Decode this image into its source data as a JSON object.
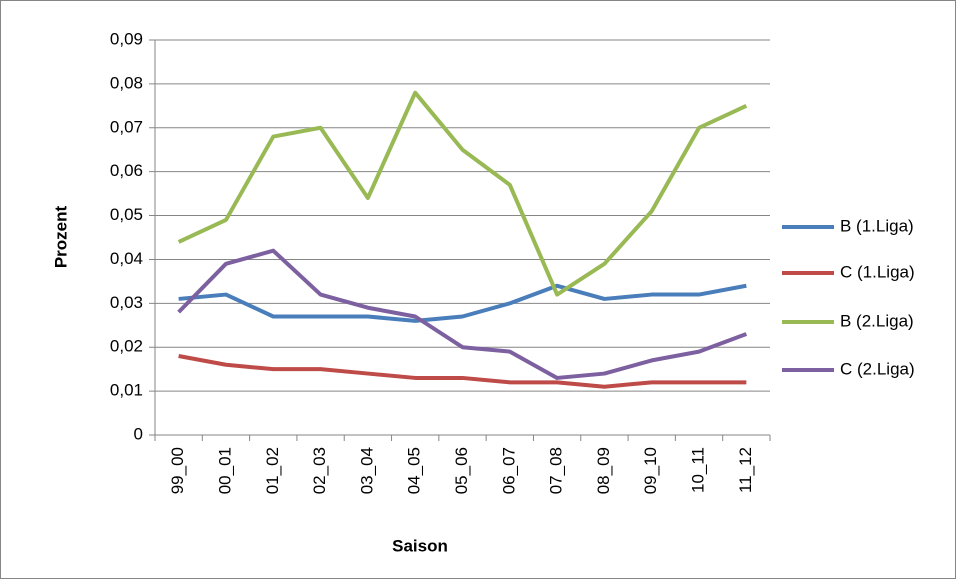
{
  "chart_data": {
    "type": "line",
    "x_label": "Saison",
    "y_label": "Prozent",
    "categories": [
      "99_00",
      "00_01",
      "01_02",
      "02_03",
      "03_04",
      "04_05",
      "05_06",
      "06_07",
      "07_08",
      "08_09",
      "09_10",
      "10_11",
      "11_12"
    ],
    "series": [
      {
        "name": "B (1.Liga)",
        "color": "#4a7ebb",
        "values": [
          0.031,
          0.032,
          0.027,
          0.027,
          0.027,
          0.026,
          0.027,
          0.03,
          0.034,
          0.031,
          0.032,
          0.032,
          0.034
        ]
      },
      {
        "name": "C (1.Liga)",
        "color": "#be4b48",
        "values": [
          0.018,
          0.016,
          0.015,
          0.015,
          0.014,
          0.013,
          0.013,
          0.012,
          0.012,
          0.011,
          0.012,
          0.012,
          0.012
        ]
      },
      {
        "name": "B (2.Liga)",
        "color": "#98b954",
        "values": [
          0.044,
          0.049,
          0.068,
          0.07,
          0.054,
          0.078,
          0.065,
          0.057,
          0.032,
          0.039,
          0.051,
          0.07,
          0.075
        ]
      },
      {
        "name": "C (2.Liga)",
        "color": "#7d60a0",
        "values": [
          0.028,
          0.039,
          0.042,
          0.032,
          0.029,
          0.027,
          0.02,
          0.019,
          0.013,
          0.014,
          0.017,
          0.019,
          0.023
        ]
      }
    ],
    "ylim": [
      0,
      0.09
    ],
    "yticks": [
      0,
      {
        "value": 0.01,
        "label": "0,01"
      },
      {
        "value": 0.02,
        "label": "0,02"
      },
      {
        "value": 0.03,
        "label": "0,03"
      },
      {
        "value": 0.04,
        "label": "0,04"
      },
      {
        "value": 0.05,
        "label": "0,05"
      },
      {
        "value": 0.06,
        "label": "0,06"
      },
      {
        "value": 0.07,
        "label": "0,07"
      },
      {
        "value": 0.08,
        "label": "0,08"
      },
      {
        "value": 0.09,
        "label": "0,09"
      }
    ],
    "grid": true,
    "legend": "right"
  }
}
